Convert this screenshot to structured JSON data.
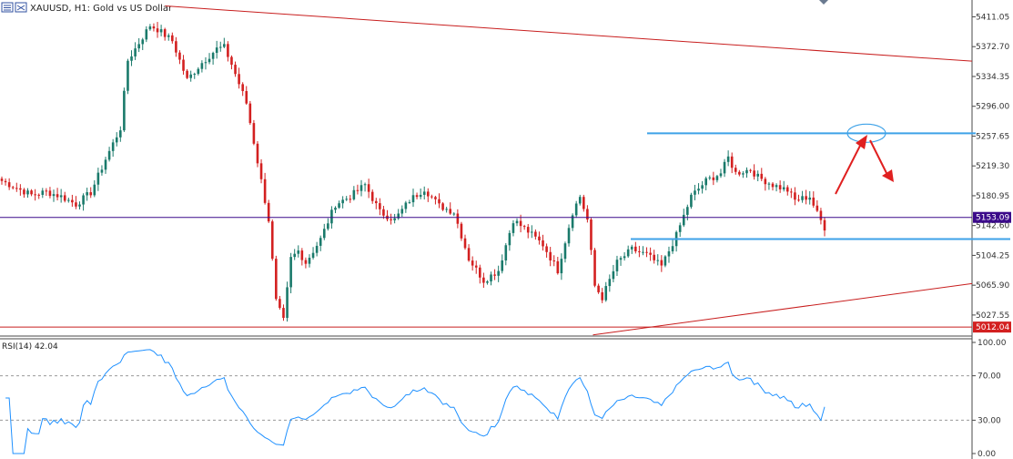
{
  "header": {
    "symbol_label": "XAUUSD, H1:  Gold vs US Dollar",
    "icon": "chart-toolbar-icon"
  },
  "chart_data": {
    "type": "candlestick",
    "title": "XAUUSD, H1:  Gold vs US Dollar",
    "timeframe": "H1",
    "colors": {
      "bull": "#1a7a6b",
      "bear": "#d32020",
      "rsi_line": "#1e90ff",
      "support_resistance": "#3ea2e8",
      "trendline": "#c81e1e",
      "price_line": "#3b0a8a",
      "arrow": "#e02020"
    },
    "price_axis": {
      "ticks": [
        "5411.05",
        "5372.70",
        "5334.35",
        "5296.00",
        "5257.65",
        "5219.30",
        "5180.95",
        "5142.60",
        "5104.25",
        "5065.90",
        "5027.55"
      ],
      "ylim": [
        5004.0,
        5428.0
      ]
    },
    "current_price": {
      "label": "5153.09",
      "value": 5153.09
    },
    "low_level": {
      "label": "5012.04",
      "value": 5012.04
    },
    "horizontal_levels": [
      5261.3,
      5125.2
    ],
    "trendlines": [
      {
        "from_pct": 0.17,
        "from_price": 5425.0,
        "to_pct": 1.0,
        "to_price": 5354.0
      },
      {
        "from_pct": 0.61,
        "from_price": 5002.0,
        "to_pct": 1.0,
        "to_price": 5068.0
      }
    ],
    "anchors": [
      [
        0,
        5200
      ],
      [
        8,
        5182
      ],
      [
        12,
        5186
      ],
      [
        16,
        5180
      ],
      [
        20,
        5170
      ],
      [
        24,
        5185
      ],
      [
        28,
        5228
      ],
      [
        32,
        5268
      ],
      [
        34,
        5355
      ],
      [
        36,
        5370
      ],
      [
        40,
        5400
      ],
      [
        42,
        5395
      ],
      [
        46,
        5380
      ],
      [
        50,
        5330
      ],
      [
        54,
        5352
      ],
      [
        58,
        5370
      ],
      [
        60,
        5372
      ],
      [
        62,
        5350
      ],
      [
        66,
        5300
      ],
      [
        70,
        5200
      ],
      [
        72,
        5150
      ],
      [
        74,
        5045
      ],
      [
        76,
        5020
      ],
      [
        78,
        5100
      ],
      [
        80,
        5110
      ],
      [
        82,
        5095
      ],
      [
        86,
        5125
      ],
      [
        90,
        5170
      ],
      [
        94,
        5180
      ],
      [
        98,
        5195
      ],
      [
        102,
        5160
      ],
      [
        106,
        5150
      ],
      [
        110,
        5175
      ],
      [
        114,
        5190
      ],
      [
        118,
        5168
      ],
      [
        122,
        5160
      ],
      [
        126,
        5100
      ],
      [
        130,
        5072
      ],
      [
        134,
        5085
      ],
      [
        138,
        5150
      ],
      [
        142,
        5135
      ],
      [
        146,
        5118
      ],
      [
        150,
        5085
      ],
      [
        154,
        5160
      ],
      [
        156,
        5180
      ],
      [
        158,
        5150
      ],
      [
        160,
        5065
      ],
      [
        162,
        5050
      ],
      [
        166,
        5095
      ],
      [
        170,
        5112
      ],
      [
        174,
        5105
      ],
      [
        178,
        5090
      ],
      [
        182,
        5130
      ],
      [
        186,
        5180
      ],
      [
        190,
        5200
      ],
      [
        194,
        5210
      ],
      [
        196,
        5230
      ],
      [
        198,
        5210
      ],
      [
        202,
        5215
      ],
      [
        204,
        5205
      ],
      [
        208,
        5195
      ],
      [
        212,
        5188
      ],
      [
        214,
        5175
      ],
      [
        218,
        5180
      ],
      [
        220,
        5158
      ],
      [
        222,
        5140
      ]
    ],
    "rsi": {
      "label": "RSI(14) 42.04",
      "period": 14,
      "last_value": 42.04,
      "ticks": [
        "100.00",
        "70.00",
        "30.00",
        "0.00"
      ],
      "levels": [
        70,
        30
      ],
      "ylim": [
        0,
        100
      ]
    },
    "annotations": [
      {
        "type": "ellipse-target",
        "price": 5261.3
      },
      {
        "type": "arrow-up-to-target"
      },
      {
        "type": "arrow-down-after-target"
      }
    ]
  }
}
